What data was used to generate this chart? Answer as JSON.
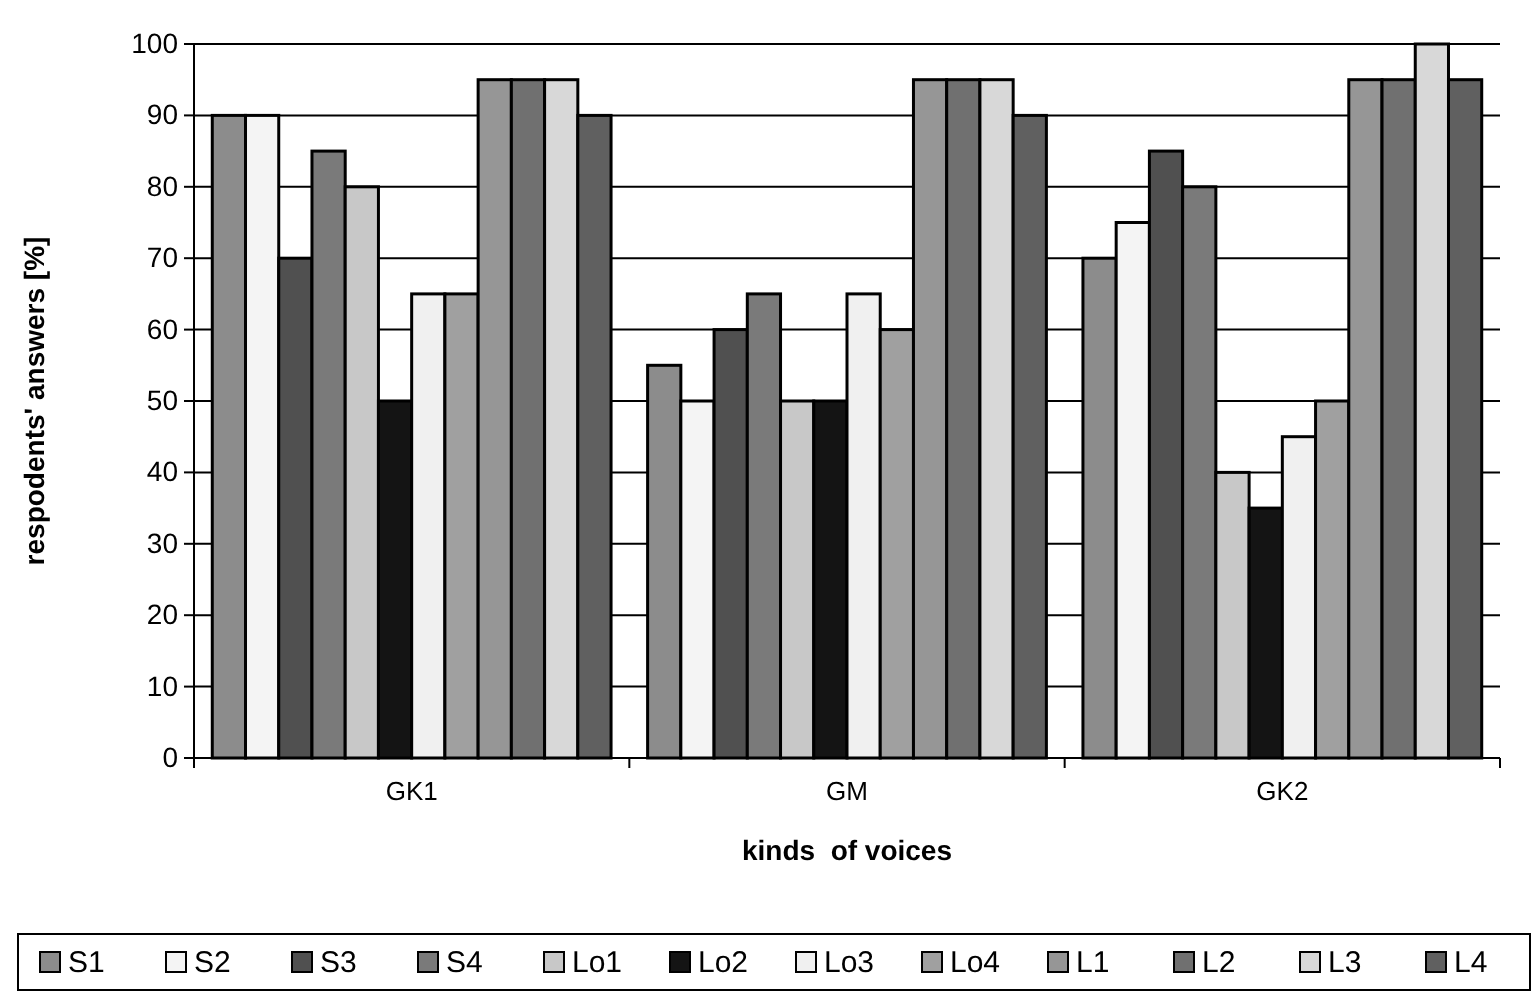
{
  "chart_data": {
    "type": "bar",
    "xlabel": "kinds  of voices",
    "ylabel": "respodents' answers [%]",
    "categories": [
      "GK1",
      "GM",
      "GK2"
    ],
    "series": [
      {
        "name": "S1",
        "color": "#8c8c8c",
        "values": [
          90,
          55,
          70
        ]
      },
      {
        "name": "S2",
        "color": "#f4f4f4",
        "values": [
          90,
          50,
          75
        ]
      },
      {
        "name": "S3",
        "color": "#505050",
        "values": [
          70,
          60,
          85
        ]
      },
      {
        "name": "S4",
        "color": "#7a7a7a",
        "values": [
          85,
          65,
          80
        ]
      },
      {
        "name": "Lo1",
        "color": "#c8c8c8",
        "values": [
          80,
          50,
          40
        ]
      },
      {
        "name": "Lo2",
        "color": "#141414",
        "values": [
          50,
          50,
          35
        ]
      },
      {
        "name": "Lo3",
        "color": "#f0f0f0",
        "values": [
          65,
          65,
          45
        ]
      },
      {
        "name": "Lo4",
        "color": "#a0a0a0",
        "values": [
          65,
          60,
          50
        ]
      },
      {
        "name": "L1",
        "color": "#969696",
        "values": [
          95,
          95,
          95
        ]
      },
      {
        "name": "L2",
        "color": "#707070",
        "values": [
          95,
          95,
          95
        ]
      },
      {
        "name": "L3",
        "color": "#d8d8d8",
        "values": [
          95,
          95,
          100
        ]
      },
      {
        "name": "L4",
        "color": "#606060",
        "values": [
          90,
          90,
          95
        ]
      }
    ],
    "ylim": [
      0,
      100
    ],
    "yticks": [
      0,
      10,
      20,
      30,
      40,
      50,
      60,
      70,
      80,
      90,
      100
    ],
    "grid": "y",
    "legend": "bottom"
  }
}
